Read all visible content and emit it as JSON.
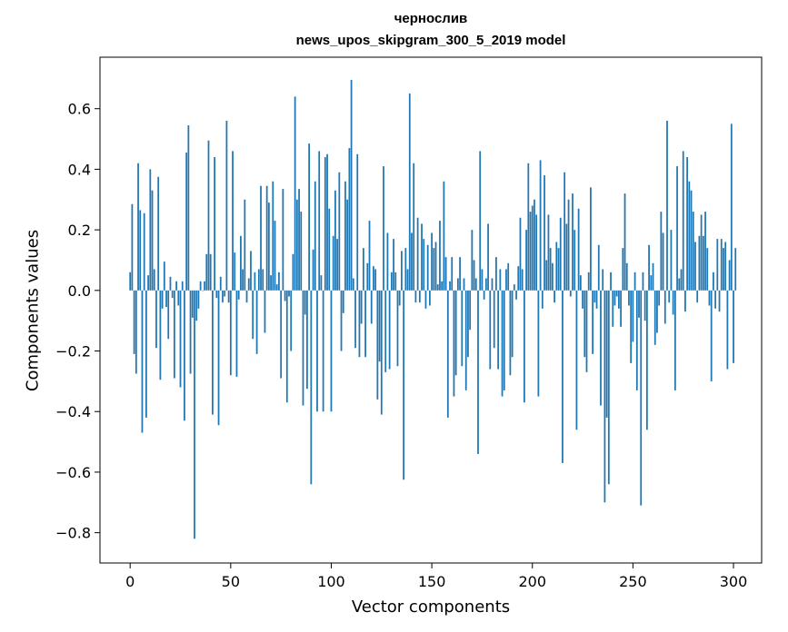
{
  "chart_data": {
    "type": "bar",
    "title": "чернослив",
    "subtitle": "news_upos_skipgram_300_5_2019 model",
    "xlabel": "Vector components",
    "ylabel": "Components values",
    "xlim": [
      -15,
      314
    ],
    "ylim": [
      -0.9,
      0.77
    ],
    "xticks": [
      0,
      50,
      100,
      150,
      200,
      250,
      300
    ],
    "yticks": [
      -0.8,
      -0.6,
      -0.4,
      -0.2,
      0.0,
      0.2,
      0.4,
      0.6
    ],
    "ytick_labels": [
      "−0.8",
      "−0.6",
      "−0.4",
      "−0.2",
      "0.0",
      "0.2",
      "0.4",
      "0.6"
    ],
    "grid": false,
    "bar_color": "#1f77b4",
    "values": [
      0.06,
      0.285,
      -0.21,
      -0.275,
      0.42,
      0.265,
      -0.47,
      0.255,
      -0.42,
      0.05,
      0.4,
      0.33,
      0.07,
      -0.19,
      0.375,
      -0.295,
      -0.06,
      0.095,
      -0.055,
      -0.16,
      0.045,
      -0.025,
      -0.29,
      0.03,
      -0.05,
      -0.32,
      0.03,
      -0.43,
      0.455,
      0.545,
      -0.275,
      -0.09,
      -0.82,
      -0.1,
      -0.06,
      0.03,
      0.0,
      0.03,
      0.12,
      0.495,
      0.12,
      -0.41,
      0.44,
      -0.025,
      -0.445,
      0.045,
      -0.04,
      -0.02,
      0.56,
      -0.04,
      -0.28,
      0.46,
      0.125,
      -0.285,
      -0.03,
      0.18,
      0.07,
      0.3,
      -0.04,
      0.04,
      0.13,
      -0.16,
      0.06,
      -0.21,
      0.07,
      0.345,
      0.07,
      -0.14,
      0.345,
      0.29,
      0.05,
      0.36,
      0.23,
      0.02,
      0.06,
      -0.29,
      0.335,
      -0.035,
      -0.37,
      -0.02,
      -0.2,
      0.12,
      0.64,
      0.3,
      0.335,
      0.26,
      -0.38,
      -0.08,
      -0.325,
      0.485,
      -0.64,
      0.135,
      0.36,
      -0.4,
      0.46,
      0.05,
      -0.4,
      0.44,
      0.45,
      0.27,
      -0.4,
      0.18,
      0.33,
      0.17,
      0.39,
      -0.2,
      -0.075,
      0.36,
      0.3,
      0.47,
      0.695,
      0.04,
      -0.19,
      0.45,
      -0.22,
      -0.11,
      0.14,
      -0.22,
      0.09,
      0.23,
      -0.11,
      0.08,
      0.07,
      -0.36,
      -0.235,
      -0.41,
      0.41,
      -0.27,
      0.19,
      -0.26,
      0.06,
      0.17,
      0.06,
      -0.25,
      -0.05,
      0.13,
      -0.625,
      0.14,
      0.07,
      0.65,
      0.19,
      0.42,
      -0.04,
      0.24,
      -0.04,
      0.22,
      0.17,
      -0.06,
      0.15,
      -0.05,
      0.19,
      0.14,
      0.16,
      0.02,
      0.23,
      0.03,
      0.36,
      0.11,
      -0.42,
      0.03,
      0.11,
      -0.35,
      -0.28,
      0.04,
      0.11,
      -0.25,
      0.04,
      -0.33,
      -0.22,
      -0.13,
      0.2,
      0.1,
      0.04,
      -0.54,
      0.46,
      0.07,
      -0.03,
      0.04,
      0.22,
      -0.26,
      0.04,
      -0.19,
      0.11,
      -0.26,
      0.07,
      -0.35,
      -0.33,
      0.07,
      0.09,
      -0.28,
      -0.22,
      0.02,
      -0.03,
      0.08,
      0.24,
      0.07,
      -0.37,
      0.2,
      0.42,
      0.26,
      0.28,
      0.3,
      0.25,
      -0.35,
      0.43,
      -0.06,
      0.38,
      0.1,
      0.25,
      0.14,
      0.09,
      -0.04,
      0.16,
      0.14,
      0.24,
      -0.57,
      0.39,
      0.22,
      0.3,
      -0.02,
      0.32,
      0.2,
      -0.46,
      0.27,
      0.05,
      -0.06,
      -0.22,
      -0.27,
      0.06,
      0.34,
      -0.21,
      -0.04,
      -0.06,
      0.15,
      -0.38,
      0.07,
      -0.7,
      -0.42,
      -0.64,
      0.06,
      -0.12,
      -0.05,
      -0.02,
      -0.06,
      -0.12,
      0.14,
      0.32,
      0.09,
      -0.05,
      -0.24,
      -0.17,
      0.06,
      -0.33,
      -0.09,
      -0.71,
      0.06,
      -0.1,
      -0.46,
      0.15,
      0.05,
      0.09,
      -0.18,
      -0.14,
      -0.05,
      0.26,
      0.19,
      -0.11,
      0.56,
      -0.04,
      0.2,
      -0.08,
      -0.33,
      0.41,
      0.04,
      0.07,
      0.46,
      -0.07,
      0.44,
      0.36,
      0.33,
      0.26,
      0.16,
      -0.04,
      0.18,
      0.25,
      0.18,
      0.26,
      0.14,
      -0.05,
      -0.3,
      0.06,
      -0.06,
      0.17,
      -0.07,
      0.17,
      0.14,
      0.16,
      -0.26,
      0.1,
      0.55,
      -0.24,
      0.14
    ]
  }
}
